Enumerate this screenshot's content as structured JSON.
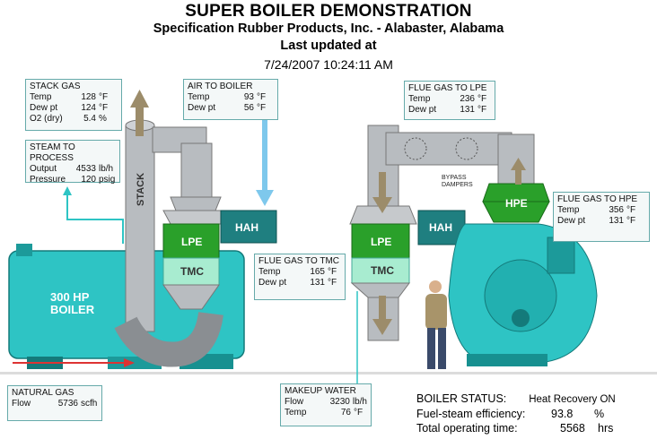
{
  "header": {
    "title": "SUPER BOILER DEMONSTRATION",
    "company": "Specification Rubber Products, Inc. - Alabaster, Alabama",
    "updated_label": "Last updated at",
    "timestamp": "7/24/2007 10:24:11 AM"
  },
  "equipment": {
    "boiler": "300 HP BOILER",
    "boiler_line1": "300 HP",
    "boiler_line2": "BOILER",
    "stack": "STACK",
    "lpe_left": "LPE",
    "tmc_left": "TMC",
    "hah_left": "HAH",
    "lpe_right": "LPE",
    "tmc_right": "TMC",
    "hah_right": "HAH",
    "hpe": "HPE",
    "bypass_line1": "BYPASS",
    "bypass_line2": "DAMPERS"
  },
  "stack_gas": {
    "title": "STACK GAS",
    "rows": [
      {
        "label": "Temp",
        "value": "128",
        "unit": "°F"
      },
      {
        "label": "Dew pt",
        "value": "124",
        "unit": "°F"
      },
      {
        "label": "O2 (dry)",
        "value": "5.4",
        "unit": "%"
      }
    ]
  },
  "steam": {
    "title": "STEAM TO PROCESS",
    "rows": [
      {
        "label": "Output",
        "value": "4533",
        "unit": "lb/h"
      },
      {
        "label": "Pressure",
        "value": "120",
        "unit": "psig"
      }
    ]
  },
  "air_to_boiler": {
    "title": "AIR TO BOILER",
    "rows": [
      {
        "label": "Temp",
        "value": "93",
        "unit": "°F"
      },
      {
        "label": "Dew pt",
        "value": "56",
        "unit": "°F"
      }
    ]
  },
  "flue_lpe": {
    "title": "FLUE GAS TO LPE",
    "rows": [
      {
        "label": "Temp",
        "value": "236",
        "unit": "°F"
      },
      {
        "label": "Dew pt",
        "value": "131",
        "unit": "°F"
      }
    ]
  },
  "flue_hpe": {
    "title": "FLUE GAS TO HPE",
    "rows": [
      {
        "label": "Temp",
        "value": "356",
        "unit": "°F"
      },
      {
        "label": "Dew pt",
        "value": "131",
        "unit": "°F"
      }
    ]
  },
  "flue_tmc": {
    "title": "FLUE GAS TO TMC",
    "rows": [
      {
        "label": "Temp",
        "value": "165",
        "unit": "°F"
      },
      {
        "label": "Dew pt",
        "value": "131",
        "unit": "°F"
      }
    ]
  },
  "natural_gas": {
    "title": "NATURAL GAS",
    "rows": [
      {
        "label": "Flow",
        "value": "5736",
        "unit": "scfh"
      }
    ]
  },
  "makeup_water": {
    "title": "MAKEUP WATER",
    "rows": [
      {
        "label": "Flow",
        "value": "3230",
        "unit": "lb/h"
      },
      {
        "label": "Temp",
        "value": "76",
        "unit": "°F"
      }
    ]
  },
  "status": {
    "label": "BOILER STATUS:",
    "value": "Heat Recovery ON",
    "efficiency_label": "Fuel-steam efficiency:",
    "efficiency_value": "93.8",
    "efficiency_unit": "%",
    "hours_label": "Total operating time:",
    "hours_value": "5568",
    "hours_unit": "hrs"
  },
  "colors": {
    "boiler": "#2ec4c4",
    "duct": "#b8bcc0",
    "lpe": "#2aa02a",
    "tmc": "#a8ecd0",
    "hah": "#1f7f80",
    "arrow_air": "#7ec8ec",
    "arrow_flue": "#9c8c6a"
  }
}
